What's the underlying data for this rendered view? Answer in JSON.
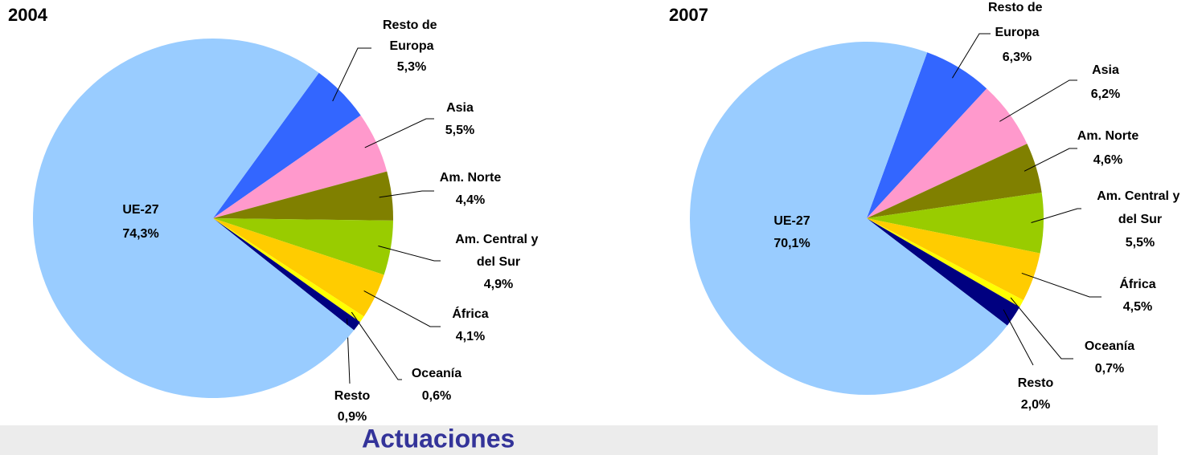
{
  "chart_data": [
    {
      "type": "pie",
      "title": "2004",
      "categories": [
        "Resto de Europa",
        "Asia",
        "Am. Norte",
        "Am. Central y del Sur",
        "África",
        "Oceanía",
        "Resto",
        "UE-27"
      ],
      "values": [
        5.3,
        5.5,
        4.4,
        4.9,
        4.1,
        0.6,
        0.9,
        74.3
      ],
      "value_labels": [
        "5,3%",
        "5,5%",
        "4,4%",
        "4,9%",
        "4,1%",
        "0,6%",
        "0,9%",
        "74,3%"
      ],
      "colors": [
        "#3366ff",
        "#ff99cc",
        "#808000",
        "#99cc00",
        "#ffcc00",
        "#ffff00",
        "#000080",
        "#99ccff"
      ]
    },
    {
      "type": "pie",
      "title": "2007",
      "categories": [
        "Resto de Europa",
        "Asia",
        "Am. Norte",
        "Am. Central y del Sur",
        "África",
        "Oceanía",
        "Resto",
        "UE-27"
      ],
      "values": [
        6.3,
        6.2,
        4.6,
        5.5,
        4.5,
        0.7,
        2.0,
        70.1
      ],
      "value_labels": [
        "6,3%",
        "6,2%",
        "4,6%",
        "5,5%",
        "4,5%",
        "0,7%",
        "2,0%",
        "70,1%"
      ],
      "colors": [
        "#3366ff",
        "#ff99cc",
        "#808000",
        "#99cc00",
        "#ffcc00",
        "#ffff00",
        "#000080",
        "#99ccff"
      ]
    }
  ],
  "footer": "Actuaciones"
}
